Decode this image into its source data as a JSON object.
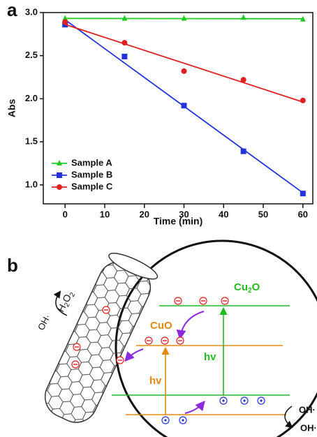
{
  "chart_data": {
    "type": "scatter",
    "panel_label": "a",
    "x_label": "Time (min)",
    "y_label": "Abs",
    "x": [
      0,
      15,
      30,
      45,
      60
    ],
    "series": [
      {
        "name": "Sample A",
        "color": "#22cc22",
        "marker": "triangle",
        "values": [
          2.93,
          2.93,
          2.93,
          2.94,
          2.92
        ]
      },
      {
        "name": "Sample B",
        "color": "#2233dd",
        "marker": "square",
        "values": [
          2.86,
          2.49,
          1.92,
          1.39,
          0.9
        ]
      },
      {
        "name": "Sample C",
        "color": "#e02020",
        "marker": "circle",
        "values": [
          2.89,
          2.65,
          2.32,
          2.22,
          1.98
        ]
      }
    ],
    "fit": "linear",
    "xlim": [
      -5.5,
      62.5
    ],
    "ylim": [
      0.78,
      3.0
    ],
    "xticks": [
      0,
      10,
      20,
      30,
      40,
      50,
      60
    ],
    "yticks": [
      {
        "value": 1,
        "label": "1.0"
      },
      1.5,
      {
        "value": 2,
        "label": "2.0"
      },
      2.5,
      {
        "value": 3,
        "label": "3.0"
      }
    ],
    "legend": "lower left"
  },
  "diagram": {
    "panel_label": "b",
    "reactant": [
      "H",
      "2",
      "O",
      "2"
    ],
    "product_left": "OH·",
    "cuo": "CuO",
    "cu2o": [
      "Cu",
      "2",
      "O"
    ],
    "hv_cuo": "hv",
    "hv_cu2o": "hv",
    "product_right_1": "OH·",
    "product_right_2": "OH·"
  }
}
